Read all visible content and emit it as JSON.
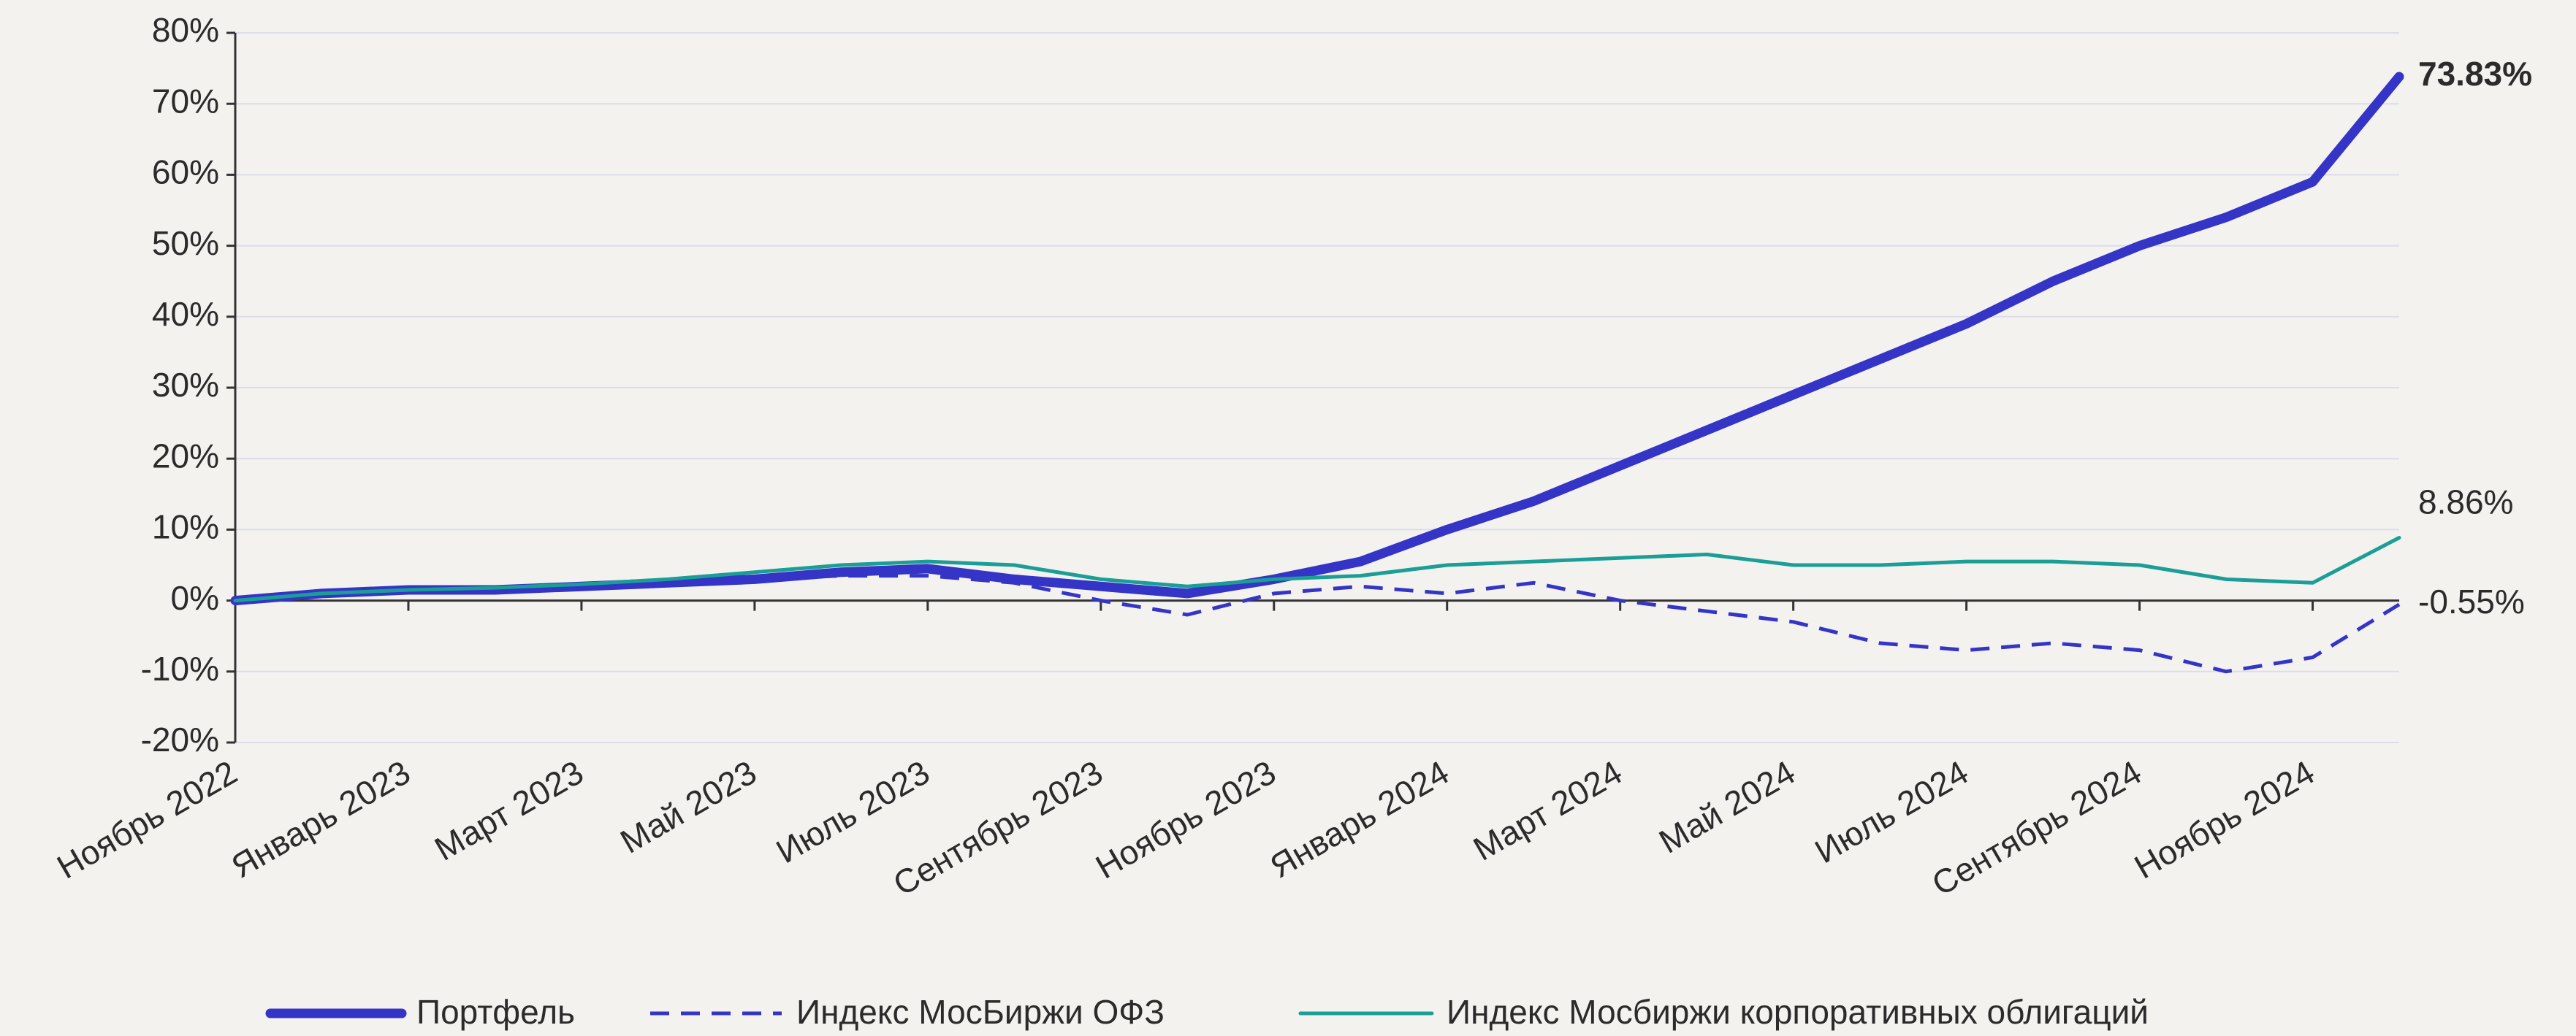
{
  "chart_data": {
    "type": "line",
    "categories": [
      "Ноябрь 2022",
      null,
      "Январь 2023",
      null,
      "Март 2023",
      null,
      "Май 2023",
      null,
      "Июль 2023",
      null,
      "Сентябрь 2023",
      null,
      "Ноябрь 2023",
      null,
      "Январь 2024",
      null,
      "Март 2024",
      null,
      "Май 2024",
      null,
      "Июль 2024",
      null,
      "Сентябрь 2024",
      null,
      "Ноябрь 2024",
      null
    ],
    "series": [
      {
        "name": "Портфель",
        "color": "#3434c6",
        "style": "thick",
        "values": [
          0,
          1,
          1.5,
          1.5,
          2,
          2.5,
          3,
          4,
          4.5,
          3,
          2,
          1,
          3,
          5.5,
          10,
          14,
          19,
          24,
          29,
          34,
          39,
          45,
          50,
          54,
          59,
          73.83
        ],
        "value_labels": [
          null,
          null,
          null,
          null,
          null,
          null,
          null,
          null,
          null,
          null,
          null,
          null,
          null,
          null,
          null,
          null,
          null,
          null,
          null,
          null,
          null,
          null,
          null,
          null,
          null,
          "73.83%"
        ]
      },
      {
        "name": "Индекс МосБиржи ОФЗ",
        "color": "#3434c6",
        "style": "dashed",
        "values": [
          0,
          1,
          1.5,
          1.5,
          2,
          2.5,
          3,
          3.5,
          3.5,
          2.5,
          0,
          -2,
          1,
          2,
          1,
          2.5,
          0,
          -1.5,
          -3,
          -6,
          -7,
          -6,
          -7,
          -10,
          -8,
          -0.55
        ],
        "value_labels": [
          null,
          null,
          null,
          null,
          null,
          null,
          null,
          null,
          null,
          null,
          null,
          null,
          null,
          null,
          null,
          null,
          null,
          null,
          null,
          null,
          null,
          null,
          null,
          null,
          null,
          "-0.55%"
        ]
      },
      {
        "name": "Индекс Мосбиржи корпоративных облигаций",
        "color": "#1a9e96",
        "style": "solid",
        "values": [
          0,
          1,
          1.5,
          1.8,
          2.3,
          3,
          4,
          5,
          5.5,
          5,
          3,
          2,
          3,
          3.5,
          5,
          5.5,
          6,
          6.5,
          5,
          5,
          5.5,
          5.5,
          5,
          3,
          2.5,
          8.86
        ],
        "value_labels": [
          null,
          null,
          null,
          null,
          null,
          null,
          null,
          null,
          null,
          null,
          null,
          null,
          null,
          null,
          null,
          null,
          null,
          null,
          null,
          null,
          null,
          null,
          null,
          null,
          null,
          "8.86%"
        ]
      }
    ],
    "ylim": [
      -20,
      80
    ],
    "yticks": [
      {
        "value": -20,
        "label": "-20%"
      },
      {
        "value": -10,
        "label": "-10%"
      },
      {
        "value": 0,
        "label": "0%"
      },
      {
        "value": 10,
        "label": "10%"
      },
      {
        "value": 20,
        "label": "20%"
      },
      {
        "value": 30,
        "label": "30%"
      },
      {
        "value": 40,
        "label": "40%"
      },
      {
        "value": 50,
        "label": "50%"
      },
      {
        "value": 60,
        "label": "60%"
      },
      {
        "value": 70,
        "label": "70%"
      },
      {
        "value": 80,
        "label": "80%"
      }
    ],
    "grid": true,
    "legend": "bottom"
  }
}
